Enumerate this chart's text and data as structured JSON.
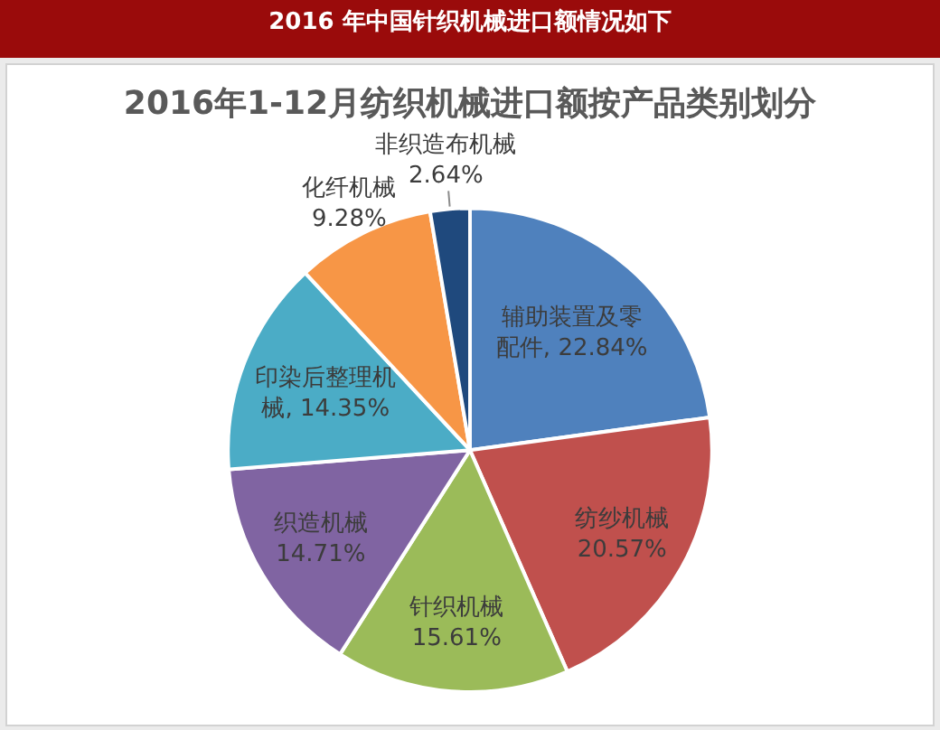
{
  "chart_data": {
    "type": "pie",
    "title": "2016 年中国针织机械进口额情况如下",
    "subtitle": "2016年1-12月纺织机械进口额按产品类别划分",
    "categories": [
      "辅助装置及零配件",
      "纺纱机械",
      "针织机械",
      "织造机械",
      "印染后整理机械",
      "化纤机械",
      "非织造布机械"
    ],
    "values": [
      22.84,
      20.57,
      15.61,
      14.71,
      14.35,
      9.28,
      2.64
    ],
    "value_labels": [
      "22.84%",
      "20.57%",
      "15.61%",
      "14.71%",
      "14.35%",
      "9.28%",
      "2.64%"
    ],
    "colors": [
      "#4f81bd",
      "#c0504d",
      "#9bbb59",
      "#8064a2",
      "#4bacc6",
      "#f79646",
      "#1f497d"
    ]
  }
}
